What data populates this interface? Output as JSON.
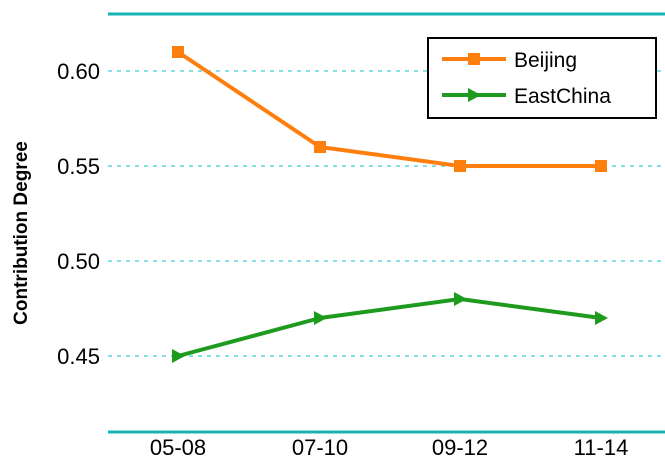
{
  "chart_data": {
    "type": "line",
    "categories": [
      "05-08",
      "07-10",
      "09-12",
      "11-14"
    ],
    "series": [
      {
        "name": "Beijing",
        "values": [
          0.61,
          0.56,
          0.55,
          0.55
        ],
        "color": "#ff7f0e",
        "marker": "square"
      },
      {
        "name": "EastChina",
        "values": [
          0.45,
          0.47,
          0.48,
          0.47
        ],
        "color": "#1e9b1e",
        "marker": "triangle-right"
      }
    ],
    "ylabel": "Contribution Degree",
    "xlabel": "",
    "ylim": [
      0.41,
      0.63
    ],
    "yticks": [
      "0.45",
      "0.50",
      "0.55",
      "0.60"
    ],
    "ytick_values": [
      0.45,
      0.5,
      0.55,
      0.6
    ],
    "grid": "horizontal dashed",
    "axis_color": "#17b3b3",
    "grid_color": "#5fd3e0",
    "legend_position": "top-right"
  }
}
